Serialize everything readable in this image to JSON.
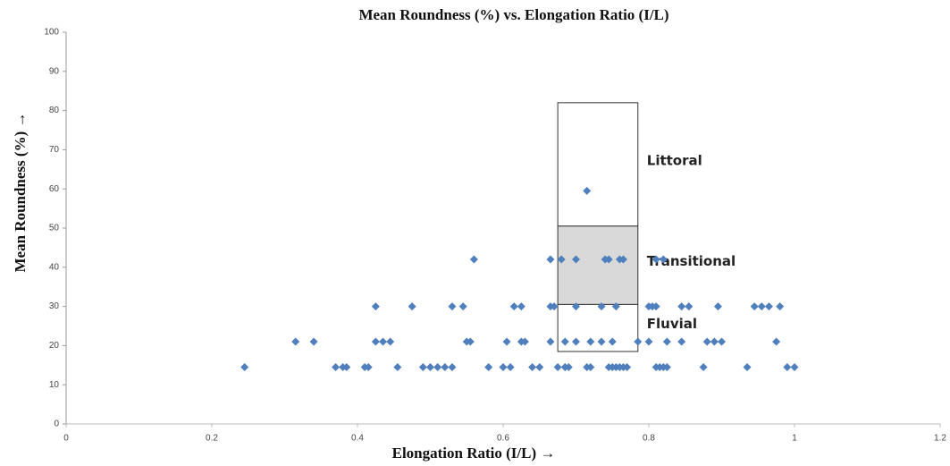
{
  "chart_data": {
    "type": "scatter",
    "title": "Mean Roundness (%) vs. Elongation Ratio (I/L)",
    "x_label": "Elongation Ratio (I/L)  →",
    "y_label": "Mean Roundness (%)  →",
    "color": "#4f7fbd",
    "xlim": [
      0,
      1.2
    ],
    "ylim": [
      0,
      100
    ],
    "xticks": [
      0,
      0.2,
      0.4,
      0.6,
      0.8,
      1,
      1.2
    ],
    "yticks": [
      0,
      10,
      20,
      30,
      40,
      50,
      60,
      70,
      80,
      90,
      100
    ],
    "x": [
      0.245,
      0.37,
      0.38,
      0.385,
      0.41,
      0.415,
      0.455,
      0.49,
      0.5,
      0.51,
      0.52,
      0.53,
      0.58,
      0.6,
      0.61,
      0.64,
      0.65,
      0.675,
      0.685,
      0.685,
      0.69,
      0.715,
      0.72,
      0.745,
      0.75,
      0.755,
      0.76,
      0.765,
      0.77,
      0.81,
      0.815,
      0.82,
      0.825,
      0.875,
      0.935,
      0.99,
      1.0,
      0.315,
      0.34,
      0.425,
      0.435,
      0.445,
      0.55,
      0.555,
      0.605,
      0.625,
      0.63,
      0.665,
      0.685,
      0.7,
      0.72,
      0.735,
      0.75,
      0.785,
      0.8,
      0.825,
      0.845,
      0.88,
      0.89,
      0.9,
      0.975,
      0.425,
      0.475,
      0.53,
      0.545,
      0.615,
      0.625,
      0.665,
      0.67,
      0.7,
      0.735,
      0.755,
      0.8,
      0.805,
      0.81,
      0.845,
      0.855,
      0.895,
      0.945,
      0.955,
      0.965,
      0.98,
      0.56,
      0.665,
      0.68,
      0.7,
      0.74,
      0.745,
      0.76,
      0.765,
      0.81,
      0.82,
      0.715
    ],
    "values": [
      14.5,
      14.5,
      14.5,
      14.5,
      14.5,
      14.5,
      14.5,
      14.5,
      14.5,
      14.5,
      14.5,
      14.5,
      14.5,
      14.5,
      14.5,
      14.5,
      14.5,
      14.5,
      14.5,
      14.5,
      14.5,
      14.5,
      14.5,
      14.5,
      14.5,
      14.5,
      14.5,
      14.5,
      14.5,
      14.5,
      14.5,
      14.5,
      14.5,
      14.5,
      14.5,
      14.5,
      14.5,
      21,
      21,
      21,
      21,
      21,
      21,
      21,
      21,
      21,
      21,
      21,
      21,
      21,
      21,
      21,
      21,
      21,
      21,
      21,
      21,
      21,
      21,
      21,
      21,
      30,
      30,
      30,
      30,
      30,
      30,
      30,
      30,
      30,
      30,
      30,
      30,
      30,
      30,
      30,
      30,
      30,
      30,
      30,
      30,
      30,
      42,
      42,
      42,
      42,
      42,
      42,
      42,
      42,
      42,
      42,
      59.5
    ],
    "regions": [
      {
        "label": "Littoral",
        "xlim": [
          0.675,
          0.785
        ],
        "ylim": [
          50.5,
          82
        ],
        "fill": "#ffffff"
      },
      {
        "label": "Transitional",
        "xlim": [
          0.675,
          0.785
        ],
        "ylim": [
          30.5,
          50.5
        ],
        "fill": "#d9d9d9"
      },
      {
        "label": "Fluvial",
        "xlim": [
          0.675,
          0.785
        ],
        "ylim": [
          18.5,
          30.5
        ],
        "fill": "#ffffff"
      }
    ]
  }
}
